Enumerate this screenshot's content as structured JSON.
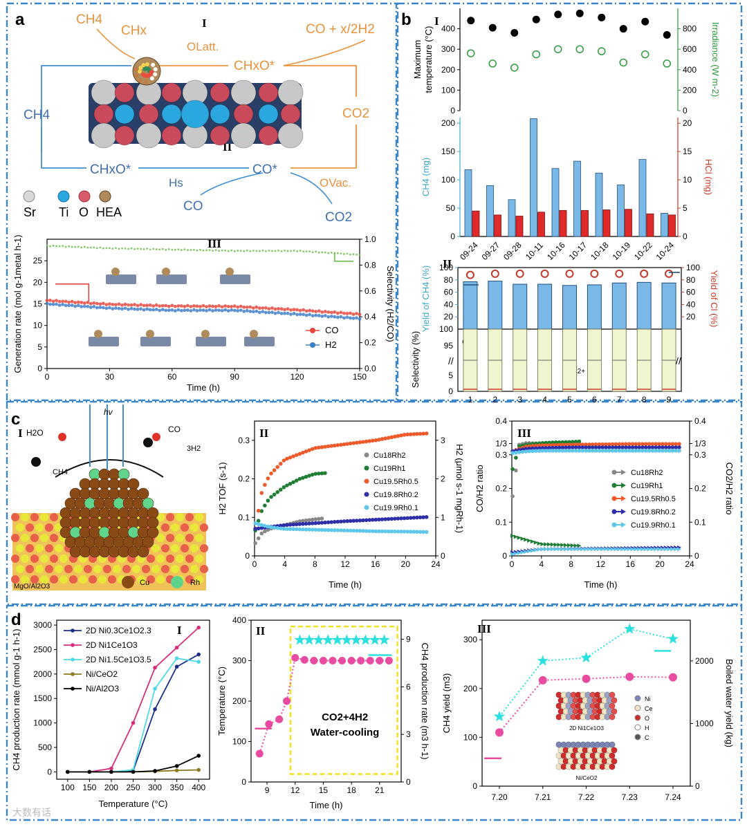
{
  "panels": {
    "a": "a",
    "b": "b",
    "c": "c",
    "d": "d",
    "roman": [
      "I",
      "II",
      "III"
    ]
  },
  "a_scheme": {
    "species": {
      "ch4_top": "CH4",
      "chx": "CHx",
      "olatt": "OLatt.",
      "chxo_top": "CHxO*",
      "co_h2": "CO + x/2H2",
      "co2_right": "CO2",
      "ch4_left": "CH4",
      "chxo_bottom": "CHxO*",
      "co_star": "CO*",
      "hs": "Hs",
      "co_free": "CO",
      "ovac": "OVac.",
      "co2_bottom": "CO2"
    },
    "legend": [
      "Sr",
      "Ti",
      "O",
      "HEA"
    ],
    "legend_colors": [
      "#d8d8d8",
      "#2aa7df",
      "#d95a6b",
      "#b08a5a"
    ]
  },
  "chart_data": [
    {
      "id": "a-III",
      "type": "scatter",
      "xlabel": "Time (h)",
      "ylabel": "Generation rate (mol g-1metal h-1)",
      "y2label": "Selectivity (H2/CO)",
      "xlim": [
        0,
        150
      ],
      "ylim": [
        0,
        30
      ],
      "y2lim": [
        0,
        1.0
      ],
      "xticks": [
        0,
        30,
        60,
        90,
        120,
        150
      ],
      "yticks": [
        0,
        5,
        10,
        15,
        20,
        25
      ],
      "y2ticks": [
        0.0,
        0.2,
        0.4,
        0.6,
        0.8,
        1.0
      ],
      "series": [
        {
          "name": "CO",
          "color": "#e8463c",
          "x": [
            0,
            30,
            60,
            90,
            120,
            150
          ],
          "y": [
            15.8,
            14.9,
            14.5,
            14.4,
            13.6,
            12.6
          ]
        },
        {
          "name": "H2",
          "color": "#3f7fc8",
          "x": [
            0,
            30,
            60,
            90,
            120,
            150
          ],
          "y": [
            15.0,
            14.0,
            13.5,
            13.5,
            12.6,
            11.6
          ]
        },
        {
          "axis": "y2",
          "color": "#6cbf4a",
          "x": [
            0,
            30,
            60,
            90,
            120,
            150
          ],
          "y": [
            0.95,
            0.93,
            0.92,
            0.91,
            0.91,
            0.88
          ]
        }
      ]
    },
    {
      "id": "b-I",
      "type": "scatter",
      "categories": [
        "09-24",
        "09-27",
        "09-28",
        "10-11",
        "10-16",
        "10-17",
        "10-18",
        "10-19",
        "10-22",
        "10-24"
      ],
      "ylabel": "Maximum temperature (°C)",
      "y2label": "Irradiance (W m-2)",
      "ylim": [
        0,
        500
      ],
      "y2lim": [
        0,
        1000
      ],
      "yticks": [
        0,
        100,
        200,
        300,
        400
      ],
      "y2ticks": [
        0,
        200,
        400,
        600,
        800
      ],
      "series": [
        {
          "axis": "y",
          "color": "#000000",
          "values": [
            440,
            405,
            380,
            445,
            470,
            475,
            455,
            400,
            435,
            370
          ]
        },
        {
          "axis": "y2",
          "color": "#2e9a3e",
          "values": [
            560,
            460,
            420,
            550,
            600,
            600,
            580,
            470,
            550,
            460
          ]
        }
      ]
    },
    {
      "id": "b-I-bars",
      "type": "bar",
      "categories": [
        "09-24",
        "09-27",
        "09-28",
        "10-11",
        "10-16",
        "10-17",
        "10-18",
        "10-19",
        "10-22",
        "10-24"
      ],
      "ylabel": "CH4 (mg)",
      "y2label": "HCl (mg)",
      "ylim": [
        0,
        210
      ],
      "y2lim": [
        0,
        21
      ],
      "yticks": [
        0,
        50,
        100,
        150,
        200
      ],
      "y2ticks": [
        0,
        5,
        10,
        15,
        20
      ],
      "series": [
        {
          "axis": "y",
          "color": "#7ab8e8",
          "values": [
            118,
            90,
            65,
            208,
            120,
            133,
            112,
            91,
            136,
            41
          ]
        },
        {
          "axis": "y2",
          "color": "#e02a2a",
          "values": [
            4.5,
            3.8,
            3.6,
            4.3,
            4.6,
            4.6,
            4.7,
            4.8,
            4.0,
            3.8
          ]
        }
      ]
    },
    {
      "id": "b-II",
      "type": "bar",
      "categories": [
        "1",
        "2",
        "3",
        "4",
        "5",
        "6",
        "7",
        "8",
        "9"
      ],
      "ylabel": "Yield of CH4 (%)",
      "y2label": "Yield of Cl (%)",
      "ylabel2": "Selectivity (%)",
      "ylim": [
        0,
        100
      ],
      "y2lim": [
        0,
        100
      ],
      "yticks": [
        20,
        40,
        60,
        80,
        100
      ],
      "y2ticks": [
        20,
        40,
        60,
        80,
        100
      ],
      "sel_ticks": [
        "100",
        "95",
        "5",
        "0"
      ],
      "labels": {
        "ch4": "CH4",
        "c2": "C2+"
      },
      "series": [
        {
          "name": "CH4 yield",
          "color": "#7ab8e8",
          "values": [
            77,
            78,
            73,
            73,
            71,
            72,
            75,
            76,
            75
          ]
        },
        {
          "name": "Cl yield",
          "axis": "y2",
          "color": "#d03a2a",
          "values": [
            88,
            90,
            90,
            90,
            90,
            90,
            90,
            90,
            90
          ]
        }
      ]
    },
    {
      "id": "c-II",
      "type": "scatter",
      "xlabel": "Time (h)",
      "ylabel": "H2 TOF (s-1)",
      "y2label": "H2 (μmol s-1 mgRh-1)",
      "xlim": [
        0,
        24
      ],
      "ylim": [
        0,
        0.35
      ],
      "y2lim": [
        0,
        3.5
      ],
      "xticks": [
        0,
        4,
        8,
        12,
        16,
        20,
        24
      ],
      "yticks": [
        0,
        0.1,
        0.2,
        0.3
      ],
      "y2ticks": [
        0,
        1,
        2,
        3
      ],
      "series": [
        {
          "name": "Cu18Rh2",
          "color": "#888888",
          "x": [
            0,
            1,
            2,
            4,
            6,
            8,
            9.3
          ],
          "y": [
            0.03,
            0.06,
            0.07,
            0.08,
            0.09,
            0.095,
            0.098
          ]
        },
        {
          "name": "Cu19Rh1",
          "color": "#1e7e34",
          "x": [
            0,
            1,
            2,
            4,
            6,
            8,
            9.4
          ],
          "y": [
            0.06,
            0.12,
            0.15,
            0.18,
            0.2,
            0.213,
            0.215
          ]
        },
        {
          "name": "Cu19.5Rh0.5",
          "color": "#ef5a2a",
          "x": [
            0,
            1,
            2,
            4,
            8,
            12,
            16,
            20,
            23
          ],
          "y": [
            0.06,
            0.17,
            0.21,
            0.25,
            0.28,
            0.29,
            0.3,
            0.315,
            0.318
          ]
        },
        {
          "name": "Cu19.8Rh0.2",
          "color": "#2e2fa8",
          "x": [
            0,
            2,
            4,
            8,
            12,
            16,
            20,
            23
          ],
          "y": [
            0.07,
            0.075,
            0.08,
            0.085,
            0.09,
            0.094,
            0.098,
            0.101
          ]
        },
        {
          "name": "Cu19.9Rh0.1",
          "color": "#5fc8ea",
          "x": [
            0,
            2,
            4,
            8,
            12,
            16,
            20,
            23
          ],
          "y": [
            0.085,
            0.075,
            0.07,
            0.068,
            0.066,
            0.064,
            0.063,
            0.062
          ]
        }
      ]
    },
    {
      "id": "c-III",
      "type": "scatter",
      "xlabel": "Time (h)",
      "ylabel": "CO/H2 ratio",
      "y2label": "CO2/H2 ratio",
      "xlim": [
        0,
        24
      ],
      "ylim": [
        0,
        0.4
      ],
      "y2lim": [
        0,
        0.4
      ],
      "xticks": [
        0,
        4,
        8,
        12,
        16,
        20,
        24
      ],
      "yticks": [
        "0",
        "0.1",
        "0.2",
        "0.3",
        "1/3",
        "0.4"
      ],
      "series": [
        {
          "name": "Cu18Rh2",
          "color": "#888888",
          "x": [
            0,
            1,
            2,
            4,
            6,
            8,
            9.3
          ],
          "y": [
            0.16,
            0.33,
            0.335,
            0.333,
            0.333,
            0.333,
            0.333
          ]
        },
        {
          "name": "Cu19Rh1",
          "color": "#1e7e34",
          "x": [
            0,
            1,
            2,
            4,
            6,
            8,
            9.3
          ],
          "y": [
            0.25,
            0.325,
            0.33,
            0.335,
            0.337,
            0.338,
            0.34
          ]
        },
        {
          "name": "Cu19.5Rh0.5",
          "color": "#ef5a2a",
          "x": [
            0,
            2,
            4,
            8,
            12,
            16,
            20,
            23
          ],
          "y": [
            0.31,
            0.325,
            0.328,
            0.33,
            0.331,
            0.332,
            0.332,
            0.332
          ]
        },
        {
          "name": "Cu19.8Rh0.2",
          "color": "#2e2fa8",
          "x": [
            0,
            2,
            4,
            8,
            12,
            16,
            20,
            23
          ],
          "y": [
            0.31,
            0.318,
            0.32,
            0.322,
            0.322,
            0.322,
            0.322,
            0.322
          ]
        },
        {
          "name": "Cu19.9Rh0.1",
          "color": "#5fc8ea",
          "x": [
            0,
            2,
            4,
            8,
            12,
            16,
            20,
            23
          ],
          "y": [
            0.305,
            0.31,
            0.312,
            0.312,
            0.312,
            0.312,
            0.312,
            0.312
          ]
        }
      ]
    },
    {
      "id": "d-I",
      "type": "line",
      "xlabel": "Temperature (°C)",
      "ylabel": "CH4 production rate (mmol g-1 h-1)",
      "xlim": [
        75,
        425
      ],
      "ylim": [
        -150,
        3100
      ],
      "xticks": [
        100,
        150,
        200,
        250,
        300,
        350,
        400
      ],
      "yticks": [
        0,
        500,
        1000,
        1500,
        2000,
        2500,
        3000
      ],
      "series": [
        {
          "name": "2D Ni0.3Ce1O2.3",
          "color": "#1c2e8c",
          "x": [
            100,
            150,
            200,
            250,
            300,
            350,
            400
          ],
          "y": [
            0,
            0,
            0,
            20,
            1280,
            2150,
            2400
          ]
        },
        {
          "name": "2D Ni1Ce1O3",
          "color": "#d62e7b",
          "x": [
            100,
            150,
            200,
            250,
            300,
            350,
            400
          ],
          "y": [
            0,
            0,
            70,
            1000,
            2130,
            2540,
            2950
          ]
        },
        {
          "name": "2D Ni1.5Ce1O3.5",
          "color": "#4fd9e5",
          "x": [
            100,
            150,
            200,
            250,
            300,
            350,
            400
          ],
          "y": [
            0,
            0,
            0,
            40,
            1700,
            2320,
            2250
          ]
        },
        {
          "name": "Ni/CeO2",
          "color": "#8c7a1e",
          "x": [
            100,
            150,
            200,
            250,
            300,
            350,
            400
          ],
          "y": [
            0,
            0,
            0,
            0,
            10,
            30,
            40
          ]
        },
        {
          "name": "Ni/Al2O3",
          "color": "#000000",
          "x": [
            100,
            150,
            200,
            250,
            300,
            350,
            400
          ],
          "y": [
            0,
            0,
            0,
            0,
            20,
            120,
            330
          ]
        }
      ]
    },
    {
      "id": "d-II",
      "type": "scatter",
      "xlabel": "Time (h)",
      "ylabel": "Temperature (°C)",
      "y2label": "CH4 production rate (m3 h-1)",
      "xlim": [
        7.3,
        23.3
      ],
      "ylim": [
        0,
        400
      ],
      "y2lim": [
        0,
        10.2
      ],
      "xticks": [
        9,
        12,
        15,
        18,
        21
      ],
      "yticks": [
        0,
        100,
        200,
        300,
        400
      ],
      "y2ticks": [
        0,
        3,
        6,
        9
      ],
      "annotation": "CO2+4H2\nWater-cooling",
      "series": [
        {
          "axis": "y",
          "color": "#e94ba0",
          "x": [
            8.2,
            9.2,
            10.3,
            11.1,
            12,
            13,
            14,
            15,
            16,
            17,
            18,
            19,
            20,
            21,
            22
          ],
          "y": [
            70,
            143,
            155,
            200,
            307,
            302,
            300,
            300,
            300,
            300,
            300,
            300,
            300,
            300,
            300
          ]
        },
        {
          "axis": "y2",
          "color": "#2de0e0",
          "x": [
            12.5,
            13.5,
            14.5,
            15.5,
            16.5,
            17.5,
            18.5,
            19.5,
            20.5,
            21.5
          ],
          "y": [
            8.95,
            8.95,
            8.95,
            8.95,
            8.95,
            8.95,
            8.95,
            8.95,
            8.95,
            8.95
          ]
        }
      ]
    },
    {
      "id": "d-III",
      "type": "scatter",
      "categories": [
        "7.20",
        "7.21",
        "7.22",
        "7.23",
        "7.24"
      ],
      "ylabel": "CH4 yield (m3)",
      "y2label": "Boiled water yield (kg)",
      "ylim": [
        0,
        340
      ],
      "y2lim": [
        0,
        2650
      ],
      "yticks": [
        0,
        100,
        200,
        300
      ],
      "y2ticks": [
        0,
        1000,
        2000
      ],
      "inset": [
        "2D Ni1Ce1O3",
        "Ni/CeO2"
      ],
      "inset_legend": [
        "Ni",
        "Ce",
        "O",
        "H",
        "C"
      ],
      "series": [
        {
          "axis": "y",
          "color": "#e94ba0",
          "values": [
            110,
            217,
            220,
            224,
            223
          ]
        },
        {
          "axis": "y2",
          "color": "#2de0e0",
          "values": [
            1110,
            2000,
            2050,
            2510,
            2350
          ]
        }
      ]
    }
  ],
  "legends": {
    "a3": [
      "CO",
      "H2"
    ],
    "c2": [
      "Cu18Rh2",
      "Cu19Rh1",
      "Cu19.5Rh0.5",
      "Cu19.8Rh0.2",
      "Cu19.9Rh0.1"
    ],
    "d1": [
      "2D Ni0.3Ce1O2.3",
      "2D Ni1Ce1O3",
      "2D Ni1.5Ce1O3.5",
      "Ni/CeO2",
      "Ni/Al2O3"
    ]
  },
  "c_scheme": {
    "h2o": "H2O",
    "ch4": "CH4",
    "hv": "hv",
    "co": "CO",
    "h2": "3H2",
    "support": "MgO/Al2O3",
    "cu": "Cu",
    "rh": "Rh"
  },
  "watermark": "大数有话"
}
